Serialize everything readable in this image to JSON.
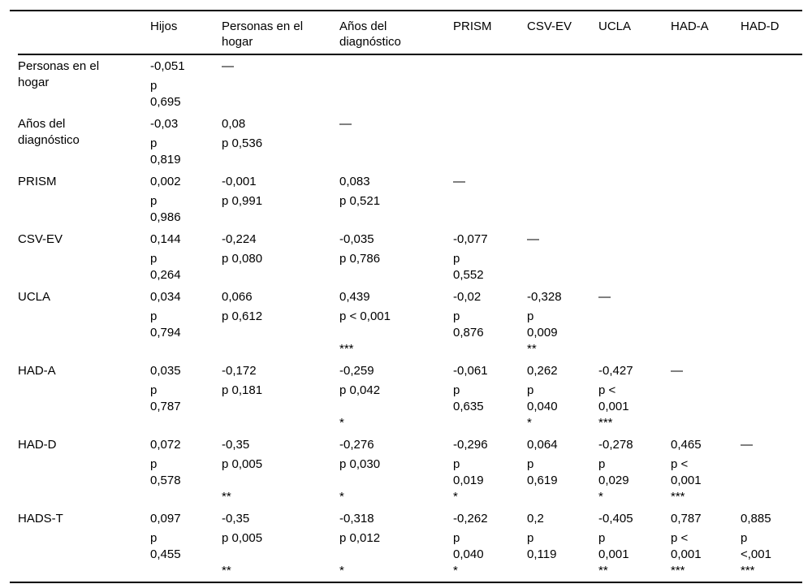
{
  "colors": {
    "background": "#ffffff",
    "text": "#000000",
    "rule": "#000000"
  },
  "table": {
    "description_label": "correlation-matrix-table",
    "col_keys": [
      "rowlabel",
      "hijos",
      "personas-en-el-hogar",
      "anos-del-diagnostico",
      "prism",
      "csv-ev",
      "ucla",
      "had-a",
      "had-d"
    ],
    "header": [
      "",
      "Hijos",
      "Personas en el hogar",
      "Años del diagnóstico",
      "PRISM",
      "CSV-EV",
      "UCLA",
      "HAD-A",
      "HAD-D"
    ],
    "rows": [
      {
        "label": "Personas en el hogar",
        "cells": [
          [
            "-0,051",
            "p",
            "0,695"
          ],
          [
            "—"
          ],
          [],
          [],
          [],
          [],
          [],
          []
        ]
      },
      {
        "label": "Años del diagnóstico",
        "cells": [
          [
            "-0,03",
            "p",
            "0,819"
          ],
          [
            "0,08",
            "p 0,536"
          ],
          [
            "—"
          ],
          [],
          [],
          [],
          [],
          []
        ]
      },
      {
        "label": "PRISM",
        "cells": [
          [
            "0,002",
            "p",
            "0,986"
          ],
          [
            "-0,001",
            "p 0,991"
          ],
          [
            "0,083",
            "p 0,521"
          ],
          [
            "—"
          ],
          [],
          [],
          [],
          []
        ]
      },
      {
        "label": "CSV-EV",
        "cells": [
          [
            "0,144",
            "p",
            "0,264"
          ],
          [
            "-0,224",
            "p 0,080"
          ],
          [
            "-0,035",
            "p 0,786"
          ],
          [
            "-0,077",
            "p",
            "0,552"
          ],
          [
            "—"
          ],
          [],
          [],
          []
        ]
      },
      {
        "label": "UCLA",
        "cells": [
          [
            "0,034",
            "p",
            "0,794"
          ],
          [
            "0,066",
            "p 0,612"
          ],
          [
            "0,439",
            "p < 0,001",
            "",
            "***"
          ],
          [
            "-0,02",
            "p",
            "0,876"
          ],
          [
            "-0,328",
            "p",
            "0,009",
            "**"
          ],
          [
            "—"
          ],
          [],
          []
        ]
      },
      {
        "label": "HAD-A",
        "cells": [
          [
            "0,035",
            "p",
            "0,787"
          ],
          [
            "-0,172",
            "p 0,181"
          ],
          [
            "-0,259",
            "p 0,042",
            "",
            "*"
          ],
          [
            "-0,061",
            "p",
            "0,635"
          ],
          [
            "0,262",
            "p",
            "0,040",
            "*"
          ],
          [
            "-0,427",
            "p <",
            "0,001",
            "***"
          ],
          [
            "—"
          ],
          []
        ]
      },
      {
        "label": "HAD-D",
        "cells": [
          [
            "0,072",
            "p",
            "0,578"
          ],
          [
            "-0,35",
            "p 0,005",
            "",
            "**"
          ],
          [
            "-0,276",
            "p 0,030",
            "",
            "*"
          ],
          [
            "-0,296",
            "p",
            "0,019",
            "*"
          ],
          [
            "0,064",
            "p",
            "0,619"
          ],
          [
            "-0,278",
            "p",
            "0,029",
            "*"
          ],
          [
            "0,465",
            "p <",
            "0,001",
            "***"
          ],
          [
            "—"
          ]
        ]
      },
      {
        "label": "HADS-T",
        "cells": [
          [
            "0,097",
            "p",
            "0,455"
          ],
          [
            "-0,35",
            "p 0,005",
            "",
            "**"
          ],
          [
            "-0,318",
            "p 0,012",
            "",
            "*"
          ],
          [
            "-0,262",
            "p",
            "0,040",
            "*"
          ],
          [
            "0,2",
            "p",
            "0,119"
          ],
          [
            "-0,405",
            "p",
            "0,001",
            "**"
          ],
          [
            "0,787",
            "p <",
            "0,001",
            "***"
          ],
          [
            "0,885",
            "p",
            "<,001",
            "***"
          ]
        ]
      }
    ]
  }
}
